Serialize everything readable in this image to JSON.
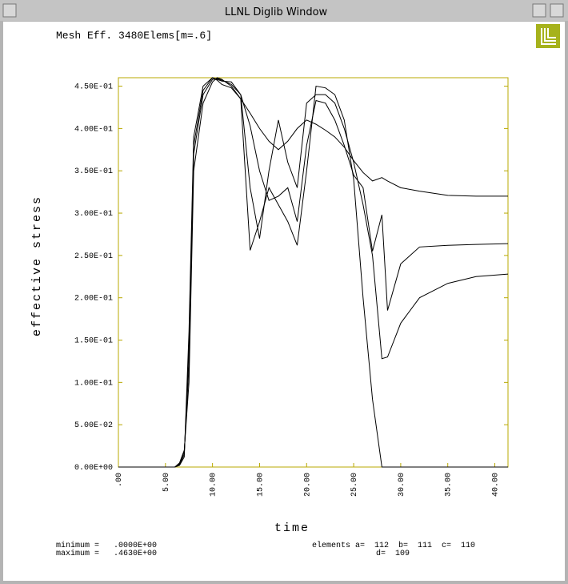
{
  "window_title": "LLNL Diglib Window",
  "chart_data": {
    "type": "line",
    "title": "Mesh Eff. 3480Elems[m=.6]",
    "xlabel": "time",
    "ylabel": "effective stress",
    "x": [
      0,
      6,
      6.5,
      7,
      7.5,
      8,
      9,
      10,
      10.5,
      11,
      12,
      13,
      14,
      15,
      16,
      17,
      18,
      19,
      20,
      21,
      22,
      23,
      24,
      25,
      26,
      27,
      28,
      28.6,
      30,
      32,
      35,
      38,
      41.4
    ],
    "series": [
      {
        "color": "#000000",
        "values": [
          0,
          0,
          0.005,
          0.02,
          0.1,
          0.35,
          0.43,
          0.455,
          0.46,
          0.458,
          0.45,
          0.435,
          0.418,
          0.4,
          0.385,
          0.375,
          0.385,
          0.4,
          0.41,
          0.405,
          0.398,
          0.39,
          0.378,
          0.362,
          0.348,
          0.338,
          0.342,
          0.338,
          0.33,
          0.326,
          0.321,
          0.32,
          0.32
        ]
      },
      {
        "color": "#000000",
        "values": [
          0,
          0,
          0.004,
          0.018,
          0.12,
          0.37,
          0.44,
          0.458,
          0.459,
          0.457,
          0.452,
          0.44,
          0.403,
          0.35,
          0.315,
          0.32,
          0.33,
          0.29,
          0.38,
          0.433,
          0.43,
          0.41,
          0.38,
          0.345,
          0.33,
          0.255,
          0.298,
          0.185,
          0.24,
          0.26,
          0.262,
          0.263,
          0.264
        ]
      },
      {
        "color": "#000000",
        "values": [
          0,
          0,
          0.003,
          0.015,
          0.14,
          0.38,
          0.445,
          0.46,
          0.458,
          0.456,
          0.455,
          0.44,
          0.33,
          0.27,
          0.35,
          0.41,
          0.36,
          0.33,
          0.43,
          0.44,
          0.44,
          0.43,
          0.4,
          0.36,
          0.31,
          0.25,
          0.128,
          0.13,
          0.17,
          0.2,
          0.217,
          0.225,
          0.228
        ]
      },
      {
        "color": "#000000",
        "values": [
          0,
          0,
          0.002,
          0.012,
          0.16,
          0.39,
          0.45,
          0.46,
          0.457,
          0.452,
          0.448,
          0.435,
          0.256,
          0.29,
          0.33,
          0.31,
          0.29,
          0.262,
          0.35,
          0.45,
          0.448,
          0.44,
          0.41,
          0.34,
          0.2,
          0.08,
          0,
          0,
          0,
          0,
          0,
          0,
          0
        ]
      }
    ],
    "xlim": [
      0,
      41.4
    ],
    "ylim": [
      0,
      0.46
    ],
    "xticks": [
      {
        "value": 0,
        "label": ".00"
      },
      {
        "value": 5,
        "label": "5.00"
      },
      {
        "value": 10,
        "label": "10.00"
      },
      {
        "value": 15,
        "label": "15.00"
      },
      {
        "value": 20,
        "label": "20.00"
      },
      {
        "value": 25,
        "label": "25.00"
      },
      {
        "value": 30,
        "label": "30.00"
      },
      {
        "value": 35,
        "label": "35.00"
      },
      {
        "value": 40,
        "label": "40.00"
      }
    ],
    "yticks": [
      {
        "value": 0,
        "label": "0.00E+00"
      },
      {
        "value": 0.05,
        "label": "5.00E-02"
      },
      {
        "value": 0.1,
        "label": "1.00E-01"
      },
      {
        "value": 0.15,
        "label": "1.50E-01"
      },
      {
        "value": 0.2,
        "label": "2.00E-01"
      },
      {
        "value": 0.25,
        "label": "2.50E-01"
      },
      {
        "value": 0.3,
        "label": "3.00E-01"
      },
      {
        "value": 0.35,
        "label": "3.50E-01"
      },
      {
        "value": 0.4,
        "label": "4.00E-01"
      },
      {
        "value": 0.45,
        "label": "4.50E-01"
      }
    ],
    "annotations": [
      "minimum =   .0000E+00",
      "maximum =   .4630E+00",
      "elements a=  112  b=  111  c=  110",
      "d=  109"
    ]
  }
}
